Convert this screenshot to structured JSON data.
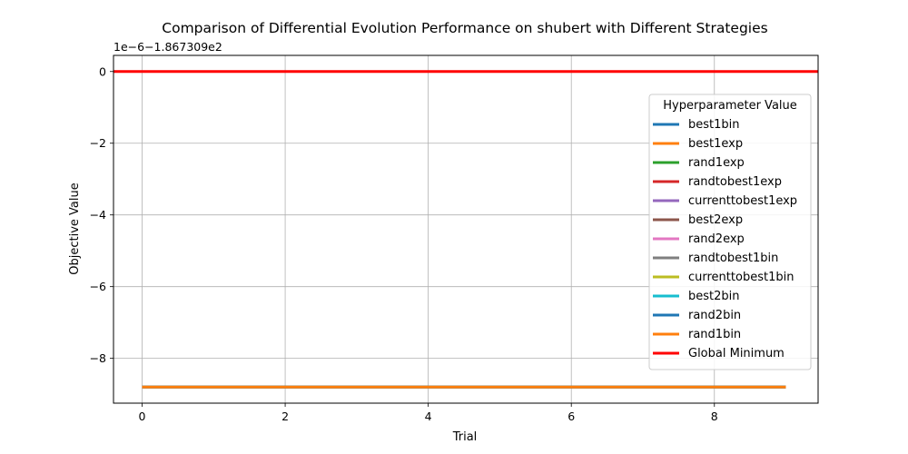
{
  "chart_data": {
    "type": "line",
    "title": "Comparison of Differential Evolution Performance on shubert with Different Strategies",
    "xlabel": "Trial",
    "ylabel": "Objective Value",
    "offset_label": "1e−6−1.867309e2",
    "xlim": [
      -0.4,
      9.45
    ],
    "ylim": [
      -9.25,
      0.45
    ],
    "xticks": [
      0,
      2,
      4,
      6,
      8
    ],
    "yticks": [
      0,
      -2,
      -4,
      -6,
      -8
    ],
    "xtick_labels": [
      "0",
      "2",
      "4",
      "6",
      "8"
    ],
    "ytick_labels": [
      "0",
      "−2",
      "−4",
      "−6",
      "−8"
    ],
    "grid": true,
    "legend": {
      "title": "Hyperparameter Value",
      "placement": "right"
    },
    "x": [
      0,
      1,
      2,
      3,
      4,
      5,
      6,
      7,
      8,
      9
    ],
    "series": [
      {
        "name": "best1bin",
        "color": "#1f77b4",
        "values": [
          -8.8,
          -8.8,
          -8.8,
          -8.8,
          -8.8,
          -8.8,
          -8.8,
          -8.8,
          -8.8,
          -8.8
        ]
      },
      {
        "name": "best1exp",
        "color": "#ff7f0e",
        "values": [
          -8.8,
          -8.8,
          -8.8,
          -8.8,
          -8.8,
          -8.8,
          -8.8,
          -8.8,
          -8.8,
          -8.8
        ]
      },
      {
        "name": "rand1exp",
        "color": "#2ca02c",
        "values": [
          -8.8,
          -8.8,
          -8.8,
          -8.8,
          -8.8,
          -8.8,
          -8.8,
          -8.8,
          -8.8,
          -8.8
        ]
      },
      {
        "name": "randtobest1exp",
        "color": "#d62728",
        "values": [
          -8.8,
          -8.8,
          -8.8,
          -8.8,
          -8.8,
          -8.8,
          -8.8,
          -8.8,
          -8.8,
          -8.8
        ]
      },
      {
        "name": "currenttobest1exp",
        "color": "#9467bd",
        "values": [
          -8.8,
          -8.8,
          -8.8,
          -8.8,
          -8.8,
          -8.8,
          -8.8,
          -8.8,
          -8.8,
          -8.8
        ]
      },
      {
        "name": "best2exp",
        "color": "#8c564b",
        "values": [
          -8.8,
          -8.8,
          -8.8,
          -8.8,
          -8.8,
          -8.8,
          -8.8,
          -8.8,
          -8.8,
          -8.8
        ]
      },
      {
        "name": "rand2exp",
        "color": "#e377c2",
        "values": [
          -8.8,
          -8.8,
          -8.8,
          -8.8,
          -8.8,
          -8.8,
          -8.8,
          -8.8,
          -8.8,
          -8.8
        ]
      },
      {
        "name": "randtobest1bin",
        "color": "#7f7f7f",
        "values": [
          -8.8,
          -8.8,
          -8.8,
          -8.8,
          -8.8,
          -8.8,
          -8.8,
          -8.8,
          -8.8,
          -8.8
        ]
      },
      {
        "name": "currenttobest1bin",
        "color": "#bcbd22",
        "values": [
          -8.8,
          -8.8,
          -8.8,
          -8.8,
          -8.8,
          -8.8,
          -8.8,
          -8.8,
          -8.8,
          -8.8
        ]
      },
      {
        "name": "best2bin",
        "color": "#17becf",
        "values": [
          -8.8,
          -8.8,
          -8.8,
          -8.8,
          -8.8,
          -8.8,
          -8.8,
          -8.8,
          -8.8,
          -8.8
        ]
      },
      {
        "name": "rand2bin",
        "color": "#1f77b4",
        "values": [
          -8.8,
          -8.8,
          -8.8,
          -8.8,
          -8.8,
          -8.8,
          -8.8,
          -8.8,
          -8.8,
          -8.8
        ]
      },
      {
        "name": "rand1bin",
        "color": "#ff7f0e",
        "values": [
          -8.8,
          -8.8,
          -8.8,
          -8.8,
          -8.8,
          -8.8,
          -8.8,
          -8.8,
          -8.8,
          -8.8
        ]
      }
    ],
    "reference_line": {
      "name": "Global Minimum",
      "color": "#ff0000",
      "y": 0
    }
  }
}
